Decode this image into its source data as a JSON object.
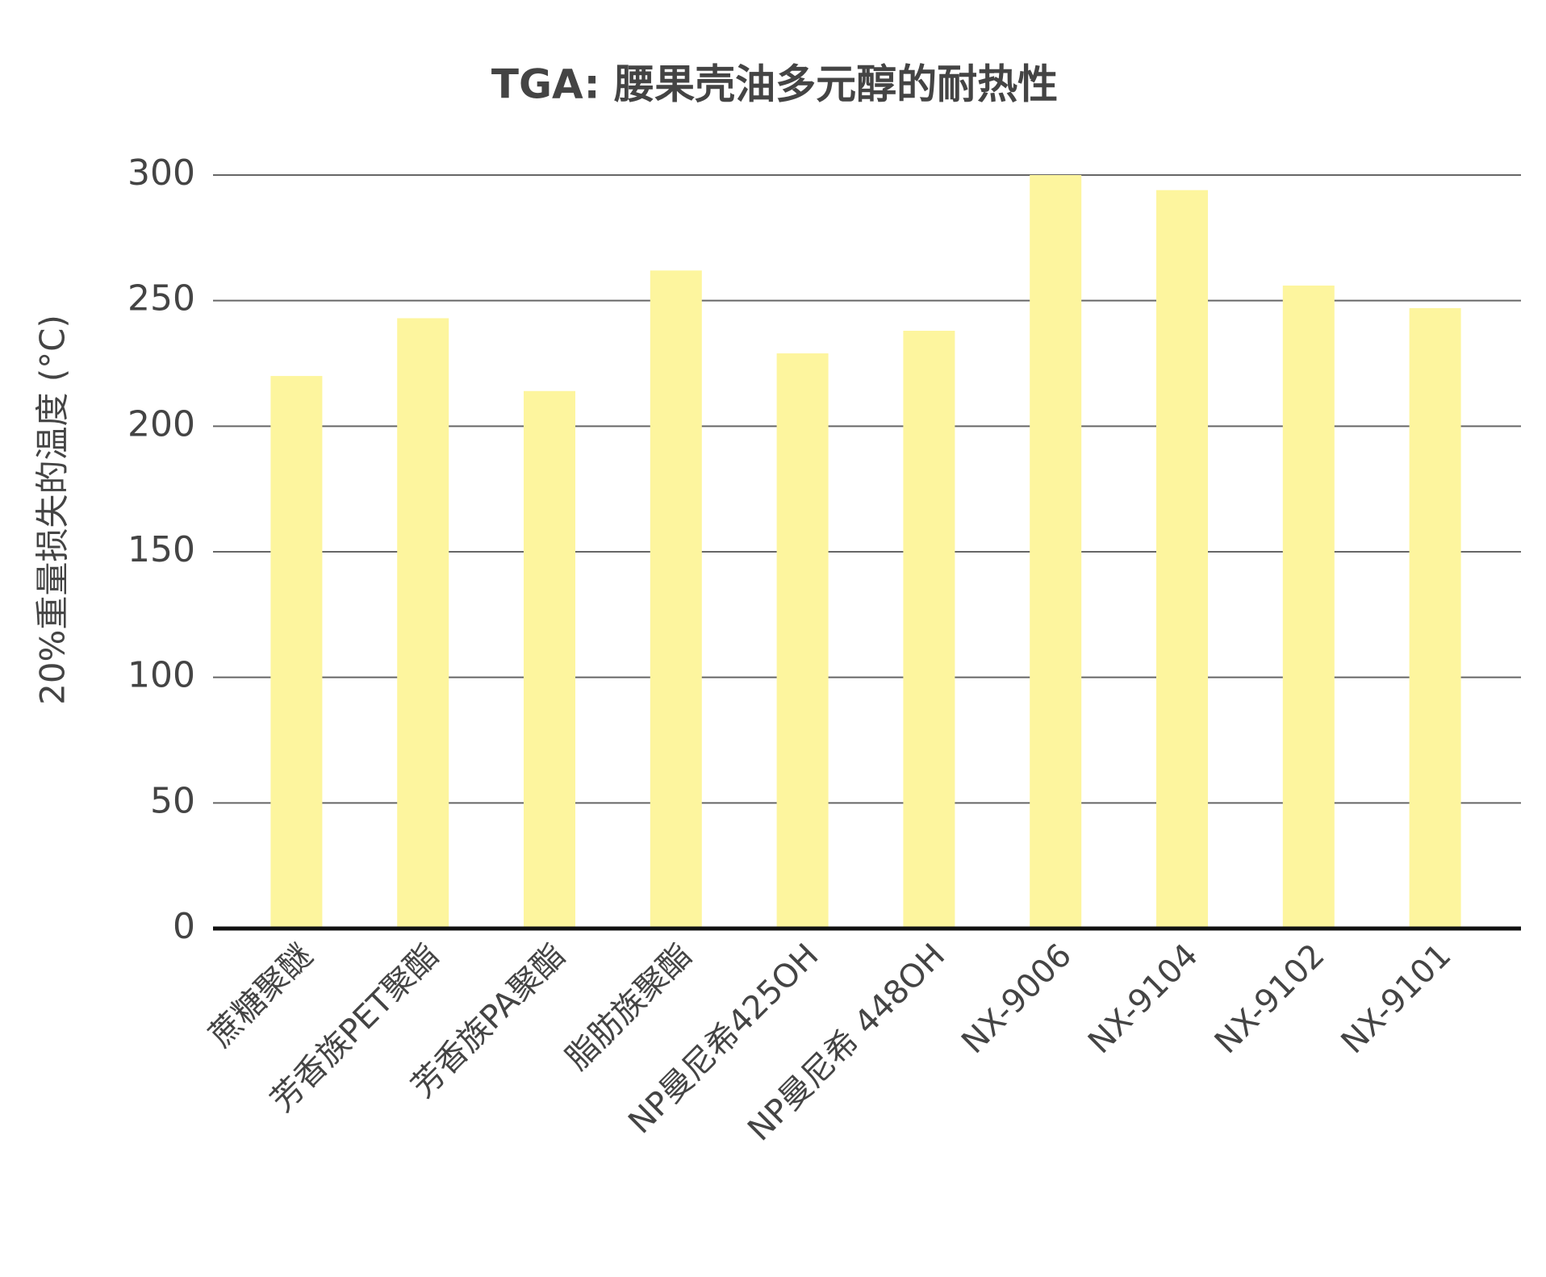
{
  "chart_data": {
    "type": "bar",
    "title": "TGA: 腰果壳油多元醇的耐热性",
    "y_label": "20%重量损失的温度 (°C)",
    "categories": [
      "蔗糖聚醚",
      "芳香族PET聚酯",
      "芳香族PA聚酯",
      "脂肪族聚酯",
      "NP曼尼希425OH",
      "NP曼尼希 448OH",
      "NX-9006",
      "NX-9104",
      "NX-9102",
      "NX-9101"
    ],
    "values": [
      220,
      243,
      214,
      262,
      229,
      238,
      300,
      294,
      256,
      247
    ],
    "color": "#fdf59e",
    "ylim": [
      0,
      300
    ],
    "yticks": [
      0,
      50,
      100,
      150,
      200,
      250,
      300
    ],
    "grid": true
  }
}
